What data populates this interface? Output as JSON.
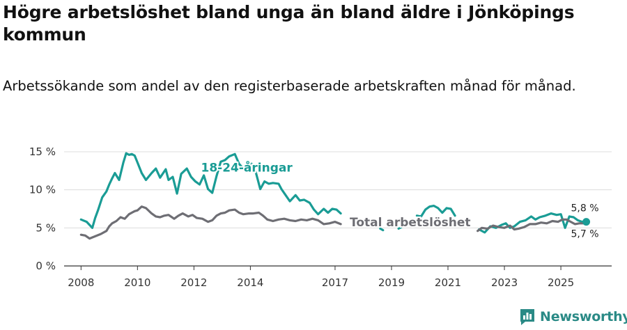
{
  "header": {
    "title": "Högre arbetslöshet bland unga än bland äldre i Jönköpings kommun",
    "subtitle": "Arbetssökande som andel av den registerbaserade arbetskraften månad för månad."
  },
  "brand": {
    "name": "Newsworthy"
  },
  "colors": {
    "youth": "#1a9c95",
    "total": "#6e6e74",
    "grid": "#dcdcdc",
    "axis": "#333333",
    "brand": "#2a8a86"
  },
  "chart_data": {
    "type": "line",
    "title": "Högre arbetslöshet bland unga än bland äldre i Jönköpings kommun",
    "subtitle": "Arbetssökande som andel av den registerbaserade arbetskraften månad för månad.",
    "xlabel": "",
    "ylabel": "",
    "xlim": [
      2007.4,
      2026.8
    ],
    "ylim": [
      0,
      15
    ],
    "y_ticks": [
      0,
      5,
      10,
      15
    ],
    "y_tick_labels": [
      "0 %",
      "5 %",
      "10 %",
      "15 %"
    ],
    "x_ticks": [
      2008,
      2010,
      2012,
      2014,
      2017,
      2019,
      2021,
      2023,
      2025
    ],
    "x_tick_labels": [
      "2008",
      "2010",
      "2012",
      "2014",
      "2017",
      "2019",
      "2021",
      "2023",
      "2025"
    ],
    "grid": true,
    "series": [
      {
        "name": "18-24-åringar",
        "label": "18-24-åringar",
        "color": "#1a9c95",
        "end_value_label": "5,8 %",
        "x": [
          2008.0,
          2008.2,
          2008.4,
          2008.5,
          2008.6,
          2008.75,
          2008.9,
          2009.0,
          2009.1,
          2009.2,
          2009.35,
          2009.5,
          2009.6,
          2009.7,
          2009.8,
          2009.9,
          2010.0,
          2010.15,
          2010.3,
          2010.5,
          2010.65,
          2010.8,
          2011.0,
          2011.1,
          2011.25,
          2011.4,
          2011.55,
          2011.75,
          2011.9,
          2012.05,
          2012.2,
          2012.35,
          2012.5,
          2012.65,
          2012.8,
          2012.95,
          2013.1,
          2013.25,
          2013.45,
          2013.6,
          2013.75,
          2013.9,
          2014.05,
          2014.2,
          2014.35,
          2014.5,
          2014.65,
          2014.8,
          2015.0,
          2015.1,
          2015.25,
          2015.4,
          2015.6,
          2015.75,
          2015.9,
          2016.1,
          2016.25,
          2016.4,
          2016.6,
          2016.75,
          2016.9,
          2017.05,
          2017.2,
          null,
          2018.6,
          2018.7,
          null,
          2019.25,
          2019.35,
          null,
          2019.9,
          2020.05,
          2020.2,
          2020.35,
          2020.5,
          2020.65,
          2020.8,
          2020.95,
          2021.1,
          2021.25,
          null,
          2022.1,
          2022.3,
          2022.5,
          2022.7,
          2022.9,
          2023.05,
          2023.2,
          2023.35,
          2023.55,
          2023.75,
          2023.95,
          2024.1,
          2024.25,
          2024.45,
          2024.65,
          2024.85,
          2025.0,
          2025.15,
          2025.3,
          2025.45,
          2025.6,
          2025.75,
          2025.9
        ],
        "y": [
          6.1,
          5.8,
          5.0,
          6.3,
          7.3,
          9.0,
          9.8,
          10.7,
          11.5,
          12.2,
          11.3,
          13.6,
          14.8,
          14.6,
          14.7,
          14.5,
          13.6,
          12.2,
          11.3,
          12.2,
          12.8,
          11.6,
          12.7,
          11.3,
          11.7,
          9.5,
          12.1,
          12.8,
          11.7,
          11.1,
          10.7,
          11.9,
          10.1,
          9.6,
          11.8,
          13.7,
          13.9,
          14.4,
          14.7,
          13.4,
          12.8,
          13.5,
          13.4,
          12.2,
          10.1,
          11.1,
          10.8,
          10.9,
          10.8,
          10.1,
          9.3,
          8.5,
          9.3,
          8.6,
          8.7,
          8.3,
          7.4,
          6.8,
          7.5,
          7.0,
          7.5,
          7.4,
          6.9,
          null,
          4.9,
          4.7,
          null,
          4.9,
          5.1,
          null,
          6.6,
          6.5,
          7.4,
          7.8,
          7.9,
          7.6,
          7.0,
          7.6,
          7.5,
          6.6,
          null,
          4.8,
          4.4,
          5.2,
          5.0,
          5.4,
          5.6,
          5.0,
          5.2,
          5.8,
          6.0,
          6.5,
          6.1,
          6.4,
          6.6,
          6.9,
          6.7,
          6.8,
          5.0,
          6.5,
          6.4,
          6.0,
          5.8,
          5.8
        ]
      },
      {
        "name": "Total arbetslöshet",
        "label": "Total arbetslöshet",
        "color": "#6e6e74",
        "end_value_label": "5,7 %",
        "x": [
          2008.0,
          2008.15,
          2008.3,
          2008.5,
          2008.7,
          2008.9,
          2009.0,
          2009.1,
          2009.25,
          2009.4,
          2009.55,
          2009.7,
          2009.8,
          2009.9,
          2010.0,
          2010.15,
          2010.3,
          2010.5,
          2010.65,
          2010.8,
          2010.95,
          2011.1,
          2011.3,
          2011.45,
          2011.6,
          2011.8,
          2011.95,
          2012.1,
          2012.3,
          2012.5,
          2012.65,
          2012.8,
          2012.95,
          2013.1,
          2013.25,
          2013.45,
          2013.6,
          2013.75,
          2013.95,
          2014.1,
          2014.3,
          2014.45,
          2014.6,
          2014.8,
          2015.0,
          2015.2,
          2015.4,
          2015.6,
          2015.8,
          2016.0,
          2016.2,
          2016.4,
          2016.6,
          2016.8,
          2017.0,
          2017.2,
          null,
          2022.05,
          2022.2,
          2022.4,
          2022.6,
          2022.8,
          2023.0,
          2023.2,
          2023.35,
          2023.5,
          2023.7,
          2023.9,
          2024.1,
          2024.3,
          2024.5,
          2024.7,
          2024.9,
          2025.05,
          2025.2,
          2025.35,
          2025.5,
          2025.65,
          2025.8,
          2025.9
        ],
        "y": [
          4.1,
          4.0,
          3.6,
          3.9,
          4.2,
          4.6,
          5.2,
          5.6,
          5.9,
          6.4,
          6.2,
          6.8,
          7.0,
          7.2,
          7.3,
          7.8,
          7.6,
          6.9,
          6.5,
          6.4,
          6.6,
          6.7,
          6.2,
          6.6,
          6.9,
          6.5,
          6.7,
          6.3,
          6.2,
          5.8,
          6.0,
          6.6,
          6.9,
          7.0,
          7.3,
          7.4,
          7.0,
          6.8,
          6.9,
          6.9,
          7.0,
          6.6,
          6.1,
          5.9,
          6.1,
          6.2,
          6.0,
          5.9,
          6.1,
          6.0,
          6.2,
          6.0,
          5.5,
          5.6,
          5.8,
          5.5,
          null,
          4.6,
          5.0,
          4.9,
          5.3,
          5.1,
          5.0,
          5.3,
          4.8,
          4.9,
          5.1,
          5.5,
          5.5,
          5.7,
          5.6,
          5.9,
          5.8,
          6.1,
          6.1,
          5.8,
          5.5,
          5.6,
          5.6,
          5.7
        ]
      }
    ],
    "end_marker": {
      "series": "18-24-åringar",
      "x": 2025.9
    }
  }
}
